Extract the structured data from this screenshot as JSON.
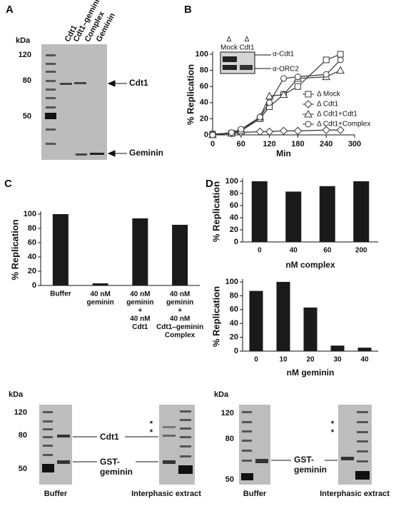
{
  "figure": {
    "panels": [
      "A",
      "B",
      "C",
      "D"
    ],
    "gel_a": {
      "unit": "kDa",
      "markers": [
        "120",
        "80",
        "50"
      ],
      "lanes": [
        "Cdt1",
        "Cdt1–geminin",
        "Complex",
        "Geminin"
      ],
      "bands": [
        "Cdt1",
        "Geminin"
      ]
    },
    "blot_b": {
      "lanes": [
        "Δ\nMock",
        "Δ\nCdt1"
      ],
      "antibodies": [
        "α-Cdt1",
        "α-ORC2"
      ]
    },
    "gel_e": {
      "unit": "kDa",
      "markers": [
        "120",
        "80",
        "50"
      ],
      "bands": [
        "Cdt1",
        "GST-\ngeminin"
      ],
      "asterisks": [
        "*",
        "*"
      ],
      "lanes": [
        "Buffer",
        "Interphasic extract"
      ]
    },
    "gel_f": {
      "unit": "kDa",
      "markers": [
        "120",
        "80",
        "50"
      ],
      "bands": [
        "GST-\ngeminin"
      ],
      "asterisks": [
        "*",
        "*"
      ],
      "lanes": [
        "Buffer",
        "Interphasic extract"
      ]
    }
  },
  "chart_data": [
    {
      "type": "line",
      "xlabel": "Min",
      "ylabel": "% Replication",
      "x": [
        0,
        40,
        60,
        100,
        120,
        150,
        180,
        240,
        270
      ],
      "xlim": [
        0,
        300
      ],
      "xticks": [
        0,
        60,
        120,
        180,
        240,
        300
      ],
      "ylim": [
        0,
        100
      ],
      "yticks": [
        0,
        20,
        40,
        60,
        80,
        100
      ],
      "series": [
        {
          "name": "Δ Mock",
          "marker": "square",
          "color": "#333333",
          "values": [
            1,
            2,
            5,
            20,
            35,
            50,
            60,
            93,
            100
          ]
        },
        {
          "name": "Δ Cdt1",
          "marker": "diamond",
          "color": "#333333",
          "values": [
            1,
            2,
            3,
            4,
            4,
            5,
            5,
            6,
            6
          ]
        },
        {
          "name": "Δ Cdt1+Cdt1",
          "marker": "triangle",
          "color": "#333333",
          "values": [
            0,
            2,
            5,
            22,
            48,
            50,
            70,
            72,
            80
          ]
        },
        {
          "name": "Δ Cdt1+Complex",
          "marker": "circle",
          "color": "#333333",
          "values": [
            0,
            3,
            7,
            22,
            40,
            70,
            72,
            75,
            93
          ]
        }
      ]
    },
    {
      "type": "bar",
      "ylabel": "% Replication",
      "color": "#1a1a1a",
      "categories": [
        "Buffer",
        "40 nM\ngeminin",
        "40 nM\ngeminin\n+\n40 nM\nCdt1",
        "40 nM\ngeminin\n+\n40 nM\nCdt1–geminin\nComplex"
      ],
      "values": [
        100,
        3,
        94,
        85
      ],
      "ylim": [
        0,
        100
      ],
      "yticks": [
        0,
        20,
        40,
        60,
        80,
        100
      ]
    },
    {
      "type": "bar",
      "ylabel": "% Replication",
      "xlabel": "nM complex",
      "color": "#1a1a1a",
      "categories": [
        "0",
        "40",
        "60",
        "200"
      ],
      "values": [
        100,
        83,
        92,
        100
      ],
      "ylim": [
        0,
        100
      ],
      "yticks": [
        0,
        20,
        40,
        60,
        80,
        100
      ]
    },
    {
      "type": "bar",
      "ylabel": "% Replication",
      "xlabel": "nM geminin",
      "color": "#1a1a1a",
      "categories": [
        "0",
        "10",
        "20",
        "30",
        "40"
      ],
      "values": [
        87,
        100,
        63,
        8,
        5
      ],
      "ylim": [
        0,
        100
      ],
      "yticks": [
        0,
        20,
        40,
        60,
        80,
        100
      ]
    }
  ]
}
